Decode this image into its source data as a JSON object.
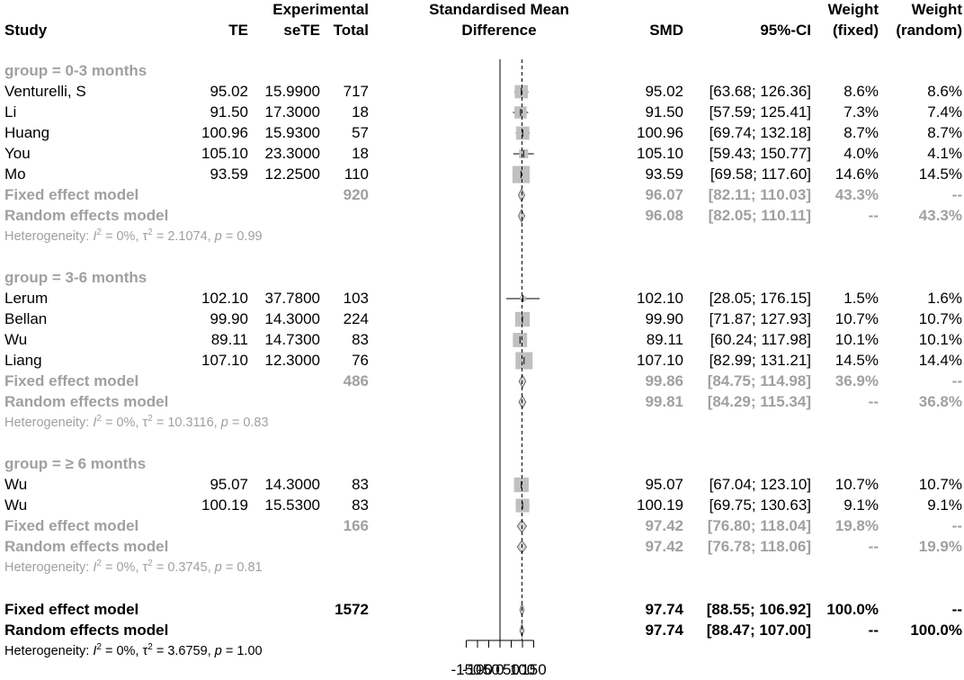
{
  "header": {
    "study": "Study",
    "te": "TE",
    "experimental": "Experimental",
    "sete": "seTE",
    "total": "Total",
    "smd_header_line1": "Standardised Mean",
    "smd_header_line2": "Difference",
    "smd": "SMD",
    "ci": "95%-CI",
    "weight_fixed_line1": "Weight",
    "weight_fixed_line2": "(fixed)",
    "weight_random_line1": "Weight",
    "weight_random_line2": "(random)"
  },
  "chart_data": {
    "type": "forest",
    "title": "",
    "xlabel": "",
    "ylabel": "",
    "xlim": [
      -150,
      150
    ],
    "x_ticks": [
      "-150",
      "-100",
      "-50",
      "0",
      "50",
      "100",
      "150"
    ],
    "x_tick_values": [
      -150,
      -100,
      -50,
      0,
      50,
      100,
      150
    ],
    "overall_reference_value": 97.74,
    "groups": [
      {
        "label": "group = 0-3 months",
        "studies": [
          {
            "name": "Venturelli, S",
            "te": "95.02",
            "sete": "15.9900",
            "total": "717",
            "smd": "95.02",
            "ci": "[63.68; 126.36]",
            "w_fixed": "8.6%",
            "w_random": "8.6%",
            "est": 95.02,
            "lo": 63.68,
            "hi": 126.36,
            "weight": 8.6
          },
          {
            "name": "Li",
            "te": "91.50",
            "sete": "17.3000",
            "total": "18",
            "smd": "91.50",
            "ci": "[57.59; 125.41]",
            "w_fixed": "7.3%",
            "w_random": "7.4%",
            "est": 91.5,
            "lo": 57.59,
            "hi": 125.41,
            "weight": 7.3
          },
          {
            "name": "Huang",
            "te": "100.96",
            "sete": "15.9300",
            "total": "57",
            "smd": "100.96",
            "ci": "[69.74; 132.18]",
            "w_fixed": "8.7%",
            "w_random": "8.7%",
            "est": 100.96,
            "lo": 69.74,
            "hi": 132.18,
            "weight": 8.7
          },
          {
            "name": "You",
            "te": "105.10",
            "sete": "23.3000",
            "total": "18",
            "smd": "105.10",
            "ci": "[59.43; 150.77]",
            "w_fixed": "4.0%",
            "w_random": "4.1%",
            "est": 105.1,
            "lo": 59.43,
            "hi": 150.77,
            "weight": 4.0
          },
          {
            "name": "Mo",
            "te": "93.59",
            "sete": "12.2500",
            "total": "110",
            "smd": "93.59",
            "ci": "[69.58; 117.60]",
            "w_fixed": "14.6%",
            "w_random": "14.5%",
            "est": 93.59,
            "lo": 69.58,
            "hi": 117.6,
            "weight": 14.6
          }
        ],
        "fixed": {
          "label": "Fixed effect model",
          "total": "920",
          "smd": "96.07",
          "ci": "[82.11; 110.03]",
          "w_fixed": "43.3%",
          "w_random": "--",
          "est": 96.07,
          "lo": 82.11,
          "hi": 110.03
        },
        "random": {
          "label": "Random effects model",
          "smd": "96.08",
          "ci": "[82.05; 110.11]",
          "w_fixed": "--",
          "w_random": "43.3%",
          "est": 96.08,
          "lo": 82.05,
          "hi": 110.11
        },
        "heterogeneity": {
          "prefix": "Heterogeneity: ",
          "i2": "0%",
          "tau2": "2.1074",
          "p": "0.99"
        }
      },
      {
        "label": "group = 3-6 months",
        "studies": [
          {
            "name": "Lerum",
            "te": "102.10",
            "sete": "37.7800",
            "total": "103",
            "smd": "102.10",
            "ci": "[28.05; 176.15]",
            "w_fixed": "1.5%",
            "w_random": "1.6%",
            "est": 102.1,
            "lo": 28.05,
            "hi": 176.15,
            "weight": 1.5
          },
          {
            "name": "Bellan",
            "te": "99.90",
            "sete": "14.3000",
            "total": "224",
            "smd": "99.90",
            "ci": "[71.87; 127.93]",
            "w_fixed": "10.7%",
            "w_random": "10.7%",
            "est": 99.9,
            "lo": 71.87,
            "hi": 127.93,
            "weight": 10.7
          },
          {
            "name": "Wu",
            "te": "89.11",
            "sete": "14.7300",
            "total": "83",
            "smd": "89.11",
            "ci": "[60.24; 117.98]",
            "w_fixed": "10.1%",
            "w_random": "10.1%",
            "est": 89.11,
            "lo": 60.24,
            "hi": 117.98,
            "weight": 10.1
          },
          {
            "name": "Liang",
            "te": "107.10",
            "sete": "12.3000",
            "total": "76",
            "smd": "107.10",
            "ci": "[82.99; 131.21]",
            "w_fixed": "14.5%",
            "w_random": "14.4%",
            "est": 107.1,
            "lo": 82.99,
            "hi": 131.21,
            "weight": 14.5
          }
        ],
        "fixed": {
          "label": "Fixed effect model",
          "total": "486",
          "smd": "99.86",
          "ci": "[84.75; 114.98]",
          "w_fixed": "36.9%",
          "w_random": "--",
          "est": 99.86,
          "lo": 84.75,
          "hi": 114.98
        },
        "random": {
          "label": "Random effects model",
          "smd": "99.81",
          "ci": "[84.29; 115.34]",
          "w_fixed": "--",
          "w_random": "36.8%",
          "est": 99.81,
          "lo": 84.29,
          "hi": 115.34
        },
        "heterogeneity": {
          "prefix": "Heterogeneity: ",
          "i2": "0%",
          "tau2": "10.3116",
          "p": "0.83"
        }
      },
      {
        "label": "group = ≥ 6 months",
        "studies": [
          {
            "name": "Wu",
            "te": "95.07",
            "sete": "14.3000",
            "total": "83",
            "smd": "95.07",
            "ci": "[67.04; 123.10]",
            "w_fixed": "10.7%",
            "w_random": "10.7%",
            "est": 95.07,
            "lo": 67.04,
            "hi": 123.1,
            "weight": 10.7
          },
          {
            "name": "Wu",
            "te": "100.19",
            "sete": "15.5300",
            "total": "83",
            "smd": "100.19",
            "ci": "[69.75; 130.63]",
            "w_fixed": "9.1%",
            "w_random": "9.1%",
            "est": 100.19,
            "lo": 69.75,
            "hi": 130.63,
            "weight": 9.1
          }
        ],
        "fixed": {
          "label": "Fixed effect model",
          "total": "166",
          "smd": "97.42",
          "ci": "[76.80; 118.04]",
          "w_fixed": "19.8%",
          "w_random": "--",
          "est": 97.42,
          "lo": 76.8,
          "hi": 118.04
        },
        "random": {
          "label": "Random effects model",
          "smd": "97.42",
          "ci": "[76.78; 118.06]",
          "w_fixed": "--",
          "w_random": "19.9%",
          "est": 97.42,
          "lo": 76.78,
          "hi": 118.06
        },
        "heterogeneity": {
          "prefix": "Heterogeneity: ",
          "i2": "0%",
          "tau2": "0.3745",
          "p": "0.81"
        }
      }
    ],
    "overall": {
      "fixed": {
        "label": "Fixed effect model",
        "total": "1572",
        "smd": "97.74",
        "ci": "[88.55; 106.92]",
        "w_fixed": "100.0%",
        "w_random": "--",
        "est": 97.74,
        "lo": 88.55,
        "hi": 106.92
      },
      "random": {
        "label": "Random effects model",
        "smd": "97.74",
        "ci": "[88.47; 107.00]",
        "w_fixed": "--",
        "w_random": "100.0%",
        "est": 97.74,
        "lo": 88.47,
        "hi": 107.0
      },
      "heterogeneity": {
        "prefix": "Heterogeneity: ",
        "i2": "0%",
        "tau2": "3.6759",
        "p": "1.00"
      }
    },
    "colors": {
      "text": "#000000",
      "subgroup": "#a0a0a0",
      "box": "#c0c0c0",
      "diamond_fill": "#d3d3d3",
      "diamond_stroke": "#707070"
    }
  }
}
